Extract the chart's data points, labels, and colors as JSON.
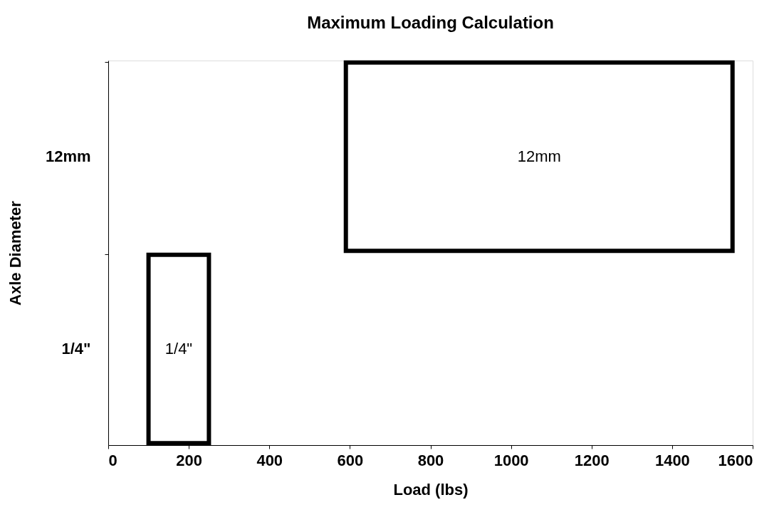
{
  "chart_data": {
    "type": "bar",
    "orientation": "horizontal",
    "title": "Maximum Loading Calculation",
    "xlabel": "Load (lbs)",
    "ylabel": "Axle Diameter",
    "categories": [
      "12mm",
      "1/4\""
    ],
    "base": [
      590,
      100
    ],
    "values": [
      960,
      150
    ],
    "colors": [
      "#ffffff",
      "#ffffff"
    ],
    "annotations": [
      "12mm",
      "1/4\""
    ],
    "legend": false,
    "xlim": [
      0,
      1600
    ],
    "xticks": [
      0,
      200,
      400,
      600,
      800,
      1000,
      1200,
      1400,
      1600
    ],
    "grid": false
  }
}
